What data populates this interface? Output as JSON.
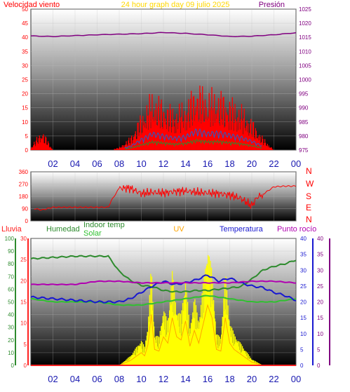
{
  "header": {
    "left_label": "Velocidad viento",
    "center_title": "24 hour graph day   09 julio 2025",
    "right_label": "Presión"
  },
  "colors": {
    "wind": "#ff0000",
    "gust_line": "#1f5fd0",
    "avg_line": "#2e8b2e",
    "pressure": "#800080",
    "direction": "#ff0000",
    "title": "#ffd700",
    "rain": "#ff2020",
    "humidity": "#2e8b2e",
    "indoor": "#30c030",
    "uv": "#ffa500",
    "temperature": "#1818d0",
    "dewpoint": "#b000b0",
    "solar": "#ffff00"
  },
  "time_ticks": [
    "02",
    "04",
    "06",
    "08",
    "10",
    "12",
    "14",
    "16",
    "18",
    "20",
    "22",
    "00"
  ],
  "panel_top": {
    "wind_ticks": [
      "50",
      "45",
      "40",
      "35",
      "30",
      "25",
      "20",
      "15",
      "10",
      "5",
      "0"
    ],
    "pressure_ticks": [
      "1025",
      "1020",
      "1015",
      "1010",
      "1005",
      "1000",
      "995",
      "990",
      "985",
      "980",
      "975"
    ]
  },
  "panel_mid": {
    "dir_ticks": [
      "360",
      "270",
      "180",
      "90",
      "0"
    ],
    "compass": [
      "N",
      "W",
      "S",
      "E",
      "N"
    ]
  },
  "panel_bottom": {
    "legend": {
      "lluvia": "Lluvia",
      "humedad": "Humedad",
      "indoor": "Indoor temp",
      "solar": "Solar",
      "uv": "UV",
      "temperatura": "Temperatura",
      "punto_rocio": "Punto rocío"
    },
    "humidity_ticks": [
      "100",
      "90",
      "80",
      "70",
      "60",
      "50",
      "40",
      "30",
      "20",
      "10",
      "0"
    ],
    "rain_ticks": [
      "30",
      "25",
      "20",
      "15",
      "10",
      "5",
      "0"
    ],
    "temp_ticks": [
      "40",
      "35",
      "30",
      "25",
      "20",
      "15",
      "10",
      "5",
      "0"
    ],
    "uv_ticks": [
      "40",
      "35",
      "30",
      "25",
      "20",
      "15",
      "10",
      "5",
      "0"
    ]
  },
  "chart_data": [
    {
      "type": "line",
      "series": [
        {
          "name": "Presión",
          "x": [
            0,
            2,
            4,
            6,
            8,
            10,
            12,
            14,
            16,
            18,
            20,
            22,
            24
          ],
          "values": [
            1015.5,
            1015.3,
            1015.6,
            1015.9,
            1016.1,
            1016.3,
            1016.7,
            1016.4,
            1015.9,
            1015.3,
            1015.4,
            1015.9,
            1016.6
          ]
        },
        {
          "name": "Velocidad viento",
          "x": [
            0,
            1,
            2,
            7,
            8,
            9,
            10,
            11,
            12,
            13,
            14,
            15,
            16,
            17,
            18,
            19,
            20,
            21,
            22,
            24
          ],
          "values": [
            1,
            8,
            0,
            0,
            1,
            5,
            14,
            22,
            19,
            16,
            18,
            26,
            22,
            23,
            20,
            17,
            12,
            5,
            0,
            0
          ]
        }
      ],
      "ylim_left": [
        0,
        50
      ],
      "ylim_right": [
        975,
        1025
      ],
      "xlim": [
        0,
        24
      ]
    },
    {
      "type": "scatter",
      "series": [
        {
          "name": "direction",
          "x": [
            0.3,
            1,
            2,
            4,
            6,
            7,
            7.3,
            8,
            9,
            10,
            11,
            12,
            13,
            14,
            15,
            16,
            17,
            18,
            19,
            20,
            20.5,
            21,
            22,
            23,
            24
          ],
          "values": [
            90,
            80,
            100,
            100,
            100,
            100,
            150,
            240,
            240,
            200,
            210,
            205,
            215,
            220,
            210,
            205,
            200,
            190,
            165,
            110,
            175,
            195,
            250,
            255,
            255
          ]
        }
      ],
      "ylim": [
        0,
        360
      ],
      "xlim": [
        0,
        24
      ]
    },
    {
      "type": "line",
      "series": [
        {
          "name": "Humedad",
          "x": [
            0,
            2,
            4,
            6,
            7,
            8,
            9,
            10,
            11,
            12,
            13,
            14,
            15,
            16,
            17,
            18,
            19,
            20,
            21,
            22,
            23,
            24
          ],
          "values": [
            84,
            85,
            86,
            86,
            86,
            74,
            67,
            63,
            62,
            59,
            58,
            58,
            59,
            59,
            60,
            61,
            62,
            68,
            75,
            78,
            80,
            83
          ]
        },
        {
          "name": "Indoor temp",
          "x": [
            0,
            2,
            4,
            6,
            8,
            10,
            12,
            14,
            16,
            18,
            20,
            22,
            24
          ],
          "values": [
            21,
            20,
            20,
            20,
            19,
            19,
            20,
            21,
            22,
            21,
            20,
            20,
            21
          ]
        },
        {
          "name": "Temperatura",
          "x": [
            0,
            2,
            4,
            6,
            8,
            9,
            10,
            11,
            12,
            13,
            14,
            15,
            16,
            17,
            18,
            19,
            20,
            21,
            22,
            23,
            24
          ],
          "values": [
            21.5,
            21,
            20.5,
            20,
            20,
            21,
            23,
            25,
            26.5,
            25.5,
            26,
            27,
            28.5,
            26.5,
            27.5,
            26,
            25,
            24.5,
            23,
            22,
            20.5
          ]
        },
        {
          "name": "Punto rocío",
          "x": [
            0,
            2,
            4,
            6,
            8,
            10,
            12,
            14,
            16,
            18,
            20,
            22,
            24
          ],
          "values": [
            25.5,
            25.5,
            25.5,
            26.5,
            26.5,
            26,
            26,
            26,
            26,
            26,
            26.5,
            26.5,
            26
          ]
        },
        {
          "name": "Lluvia",
          "x": [
            0,
            24
          ],
          "values": [
            0,
            0
          ]
        }
      ],
      "bars": [
        {
          "name": "Solar",
          "x": [
            8,
            9,
            10,
            10.3,
            10.6,
            10.9,
            11.2,
            11.6,
            12,
            12.4,
            12.8,
            13.2,
            13.6,
            14,
            14.4,
            14.8,
            15.2,
            15.6,
            16,
            16.4,
            16.8,
            17.2,
            17.6,
            18,
            18.4,
            18.8,
            19.2,
            19.6,
            20,
            20.5,
            21
          ],
          "values": [
            0,
            3,
            8,
            6,
            13,
            32,
            10,
            9,
            18,
            14,
            30,
            18,
            16,
            28,
            12,
            22,
            14,
            26,
            38,
            30,
            10,
            9,
            30,
            14,
            10,
            8,
            6,
            4,
            2,
            1,
            0
          ]
        }
      ],
      "ylim_left": [
        0,
        100
      ],
      "ylim_right": [
        0,
        40
      ],
      "xlim": [
        0,
        24
      ]
    }
  ]
}
